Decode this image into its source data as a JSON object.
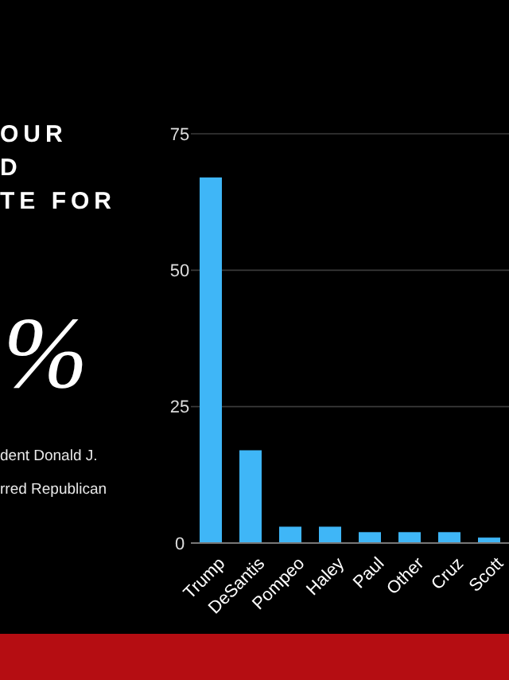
{
  "chart_data": {
    "type": "bar",
    "title": "OUR\nD\nTE FOR",
    "categories": [
      "Trump",
      "DeSantis",
      "Pompeo",
      "Haley",
      "Paul",
      "Other",
      "Cruz",
      "Scott"
    ],
    "values": [
      67,
      17,
      3,
      3,
      2,
      2,
      2,
      1
    ],
    "color": "#3fb6f7",
    "ylim": [
      0,
      75
    ],
    "yticks": [
      0,
      25,
      50,
      75
    ],
    "grid": "y",
    "annotations": [
      "%",
      "dent Donald J.",
      "rred Republican"
    ]
  }
}
